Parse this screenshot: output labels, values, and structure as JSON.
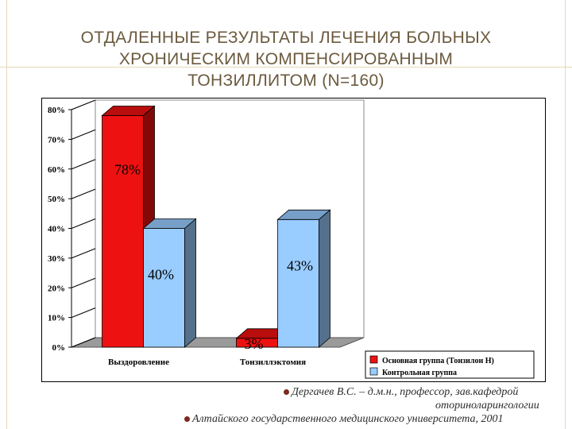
{
  "slide": {
    "title_lines": [
      "ОТДАЛЕННЫЕ РЕЗУЛЬТАТЫ ЛЕЧЕНИЯ БОЛЬНЫХ",
      "ХРОНИЧЕСКИМ КОМПЕНСИРОВАННЫМ",
      "ТОНЗИЛЛИТОМ (N=160)"
    ],
    "footer": {
      "line1": "Дергачев В.С. – д.м.н., профессор, зав.кафедрой",
      "line2": "оториноларингологии",
      "line3": "Алтайского государственного медицинского университета, 2001"
    }
  },
  "chart_data": {
    "type": "bar",
    "style": "3d-clustered",
    "categories": [
      "Выздоровление",
      "Тонзиллэктомия"
    ],
    "series": [
      {
        "name": "Основная группа (Тонзилон Н)",
        "values": [
          78,
          3
        ],
        "labels": [
          "78%",
          "3%"
        ],
        "color": "#ee1111"
      },
      {
        "name": "Контрольная группа",
        "values": [
          40,
          43
        ],
        "labels": [
          "40%",
          "43%"
        ],
        "color": "#99ccff"
      }
    ],
    "yticks": [
      "0%",
      "10%",
      "20%",
      "30%",
      "40%",
      "50%",
      "60%",
      "70%",
      "80%"
    ],
    "ylim": [
      0,
      80
    ],
    "legend_position": "bottom-right",
    "grid": false
  }
}
